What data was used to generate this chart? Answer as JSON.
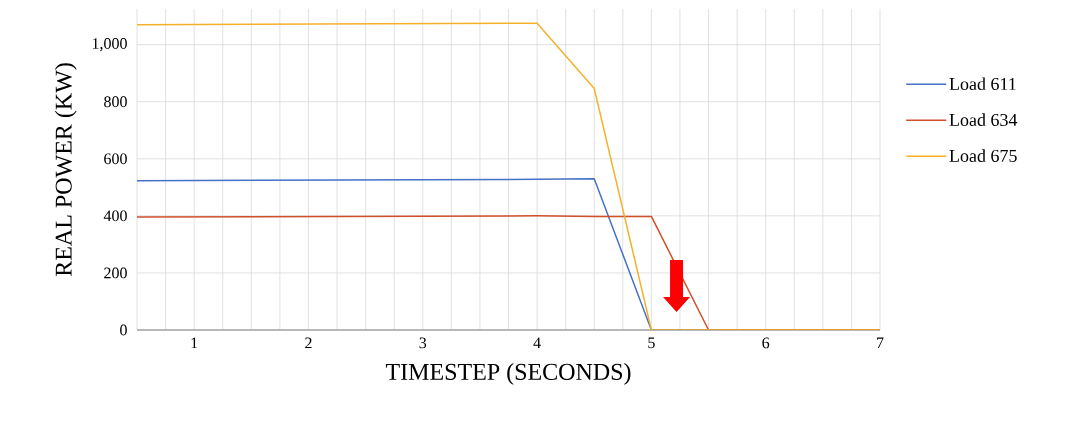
{
  "chart_data": {
    "type": "line",
    "xlabel": "TIMESTEP (SECONDS)",
    "ylabel": "REAL POWER (KW)",
    "x": [
      0.5,
      4,
      4.5,
      5,
      5.5,
      7
    ],
    "series": [
      {
        "name": "Load 611",
        "color": "#4472c4",
        "values": [
          523,
          528,
          530,
          0,
          0,
          0
        ]
      },
      {
        "name": "Load 634",
        "color": "#d0502a",
        "values": [
          396,
          400,
          398,
          398,
          0,
          0
        ]
      },
      {
        "name": "Load 675",
        "color": "#f5b02a",
        "values": [
          1070,
          1075,
          846,
          0,
          0,
          0
        ]
      }
    ],
    "xlim": [
      0.5,
      7
    ],
    "ylim": [
      0,
      1125
    ],
    "xticks": [
      {
        "value": 0.5,
        "label": null
      },
      {
        "value": 0.75,
        "label": null
      },
      1,
      {
        "value": 1.25,
        "label": null
      },
      {
        "value": 1.5,
        "label": null
      },
      {
        "value": 1.75,
        "label": null
      },
      2,
      {
        "value": 2.25,
        "label": null
      },
      {
        "value": 2.5,
        "label": null
      },
      {
        "value": 2.75,
        "label": null
      },
      3,
      {
        "value": 3.25,
        "label": null
      },
      {
        "value": 3.5,
        "label": null
      },
      {
        "value": 3.75,
        "label": null
      },
      4,
      {
        "value": 4.25,
        "label": null
      },
      {
        "value": 4.5,
        "label": null
      },
      {
        "value": 4.75,
        "label": null
      },
      5,
      {
        "value": 5.25,
        "label": null
      },
      {
        "value": 5.5,
        "label": null
      },
      {
        "value": 5.75,
        "label": null
      },
      6,
      {
        "value": 6.25,
        "label": null
      },
      {
        "value": 6.5,
        "label": null
      },
      {
        "value": 6.75,
        "label": null
      },
      7
    ],
    "yticks": [
      0,
      200,
      400,
      600,
      800,
      {
        "value": 1000,
        "label": "1,000"
      }
    ],
    "grid": true,
    "legend": "right",
    "marker": "none",
    "line_style": "solid"
  }
}
